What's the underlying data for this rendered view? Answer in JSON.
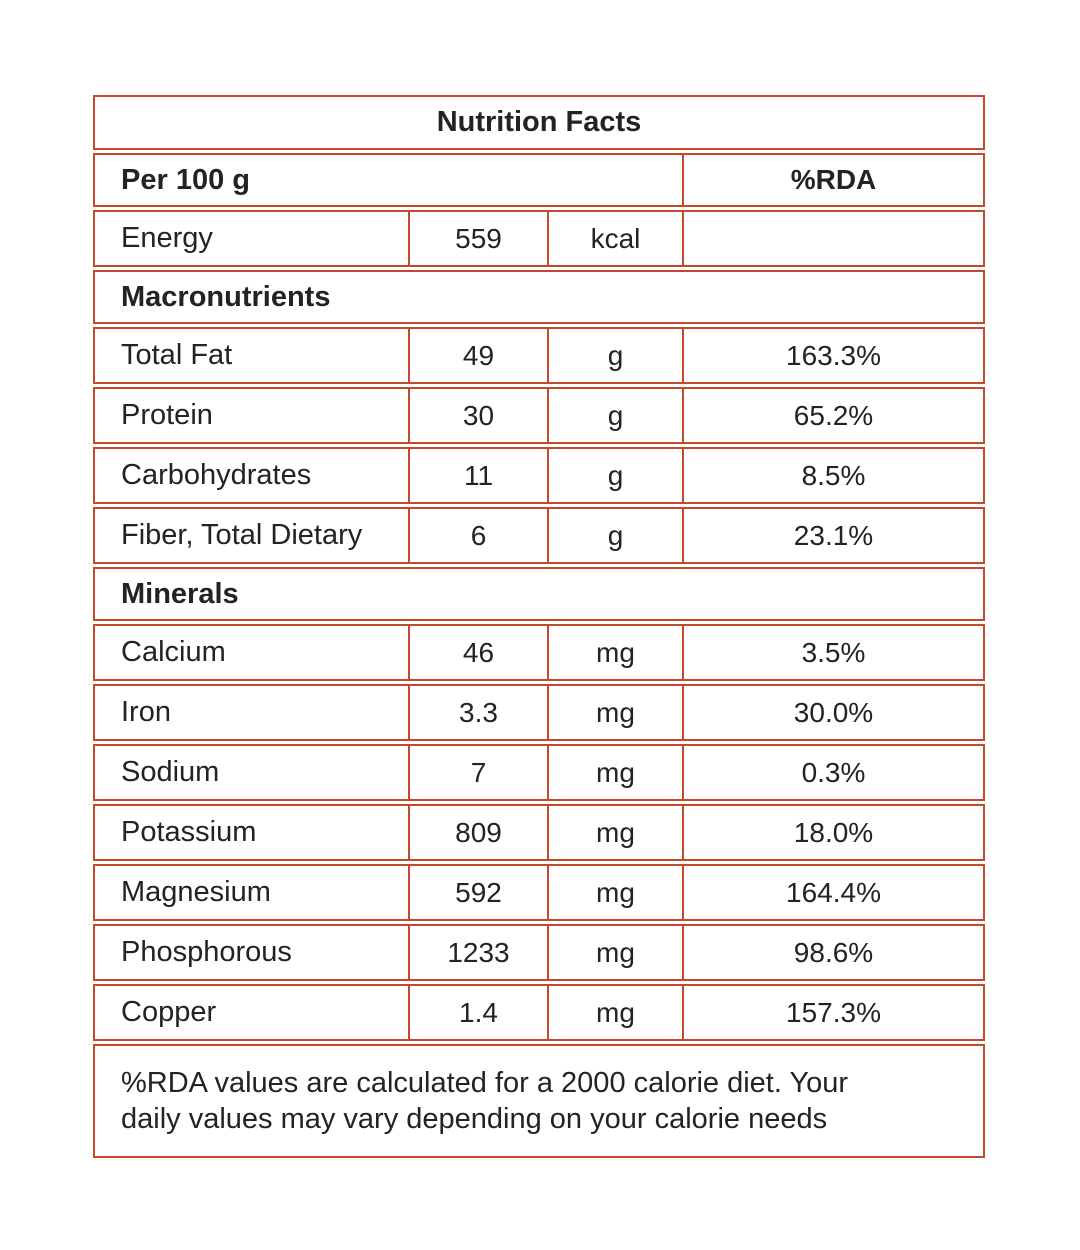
{
  "colors": {
    "border": "#c2492a",
    "text": "#262122"
  },
  "table": {
    "title": "Nutrition Facts",
    "header": {
      "serving": "Per 100 g",
      "rda": "%RDA"
    },
    "energy": {
      "label": "Energy",
      "value": "559",
      "unit": "kcal",
      "rda": ""
    },
    "sections": [
      {
        "name": "Macronutrients",
        "rows": [
          {
            "label": "Total Fat",
            "value": "49",
            "unit": "g",
            "rda": "163.3%"
          },
          {
            "label": "Protein",
            "value": "30",
            "unit": "g",
            "rda": "65.2%"
          },
          {
            "label": "Carbohydrates",
            "value": "11",
            "unit": "g",
            "rda": "8.5%"
          },
          {
            "label": "Fiber, Total Dietary",
            "value": "6",
            "unit": "g",
            "rda": "23.1%"
          }
        ]
      },
      {
        "name": "Minerals",
        "rows": [
          {
            "label": "Calcium",
            "value": "46",
            "unit": "mg",
            "rda": "3.5%"
          },
          {
            "label": "Iron",
            "value": "3.3",
            "unit": "mg",
            "rda": "30.0%"
          },
          {
            "label": "Sodium",
            "value": "7",
            "unit": "mg",
            "rda": "0.3%"
          },
          {
            "label": "Potassium",
            "value": "809",
            "unit": "mg",
            "rda": "18.0%"
          },
          {
            "label": "Magnesium",
            "value": "592",
            "unit": "mg",
            "rda": "164.4%"
          },
          {
            "label": "Phosphorous",
            "value": "1233",
            "unit": "mg",
            "rda": "98.6%"
          },
          {
            "label": "Copper",
            "value": "1.4",
            "unit": "mg",
            "rda": "157.3%"
          }
        ]
      }
    ],
    "footnote": {
      "line1": "%RDA values are calculated for a 2000 calorie diet. Your",
      "line2": "daily values may vary depending on your calorie needs"
    }
  }
}
